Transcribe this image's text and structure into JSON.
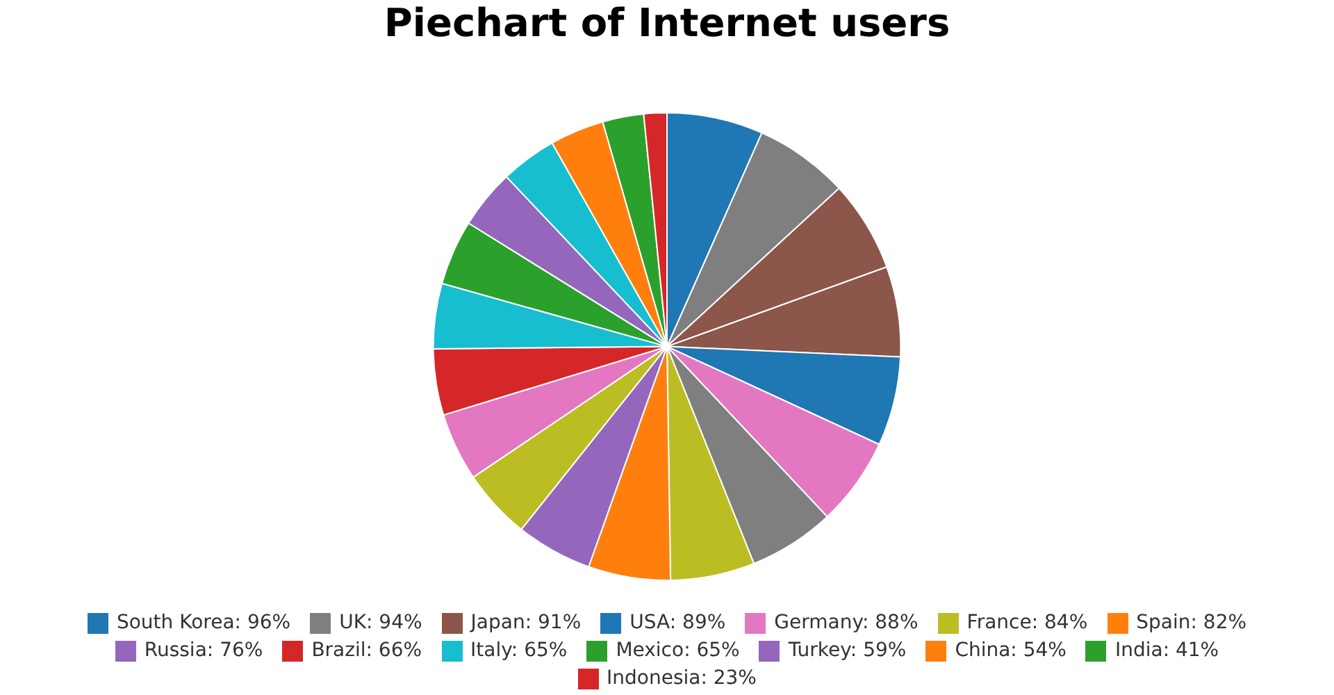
{
  "chart_data": {
    "type": "pie",
    "title": "Piechart of Internet users",
    "categories": [
      "South Korea: 96%",
      "UK: 94%",
      "Japan: 91%",
      null,
      "USA: 89%",
      "Germany: 88%",
      null,
      "France: 84%",
      "Spain: 82%",
      "Russia: 76%",
      null,
      null,
      "Brazil: 66%",
      "Italy: 65%",
      "Mexico: 65%",
      "Turkey: 59%",
      null,
      "China: 54%",
      "India: 41%",
      "Indonesia: 23%"
    ],
    "values": [
      96,
      94,
      91,
      90,
      89,
      88,
      86,
      84,
      82,
      76,
      70,
      68,
      66,
      65,
      65,
      59,
      56,
      54,
      41,
      23
    ],
    "colors": [
      "#1f77b4",
      "#7f7f7f",
      "#8c564b",
      "#8c564b",
      "#1f77b4",
      "#e377c2",
      "#7f7f7f",
      "#bcbd22",
      "#ff7f0e",
      "#9467bd",
      "#bcbd22",
      "#e377c2",
      "#d62728",
      "#17becf",
      "#2ca02c",
      "#9467bd",
      "#17becf",
      "#ff7f0e",
      "#2ca02c",
      "#d62728"
    ],
    "legend": "bottom"
  }
}
